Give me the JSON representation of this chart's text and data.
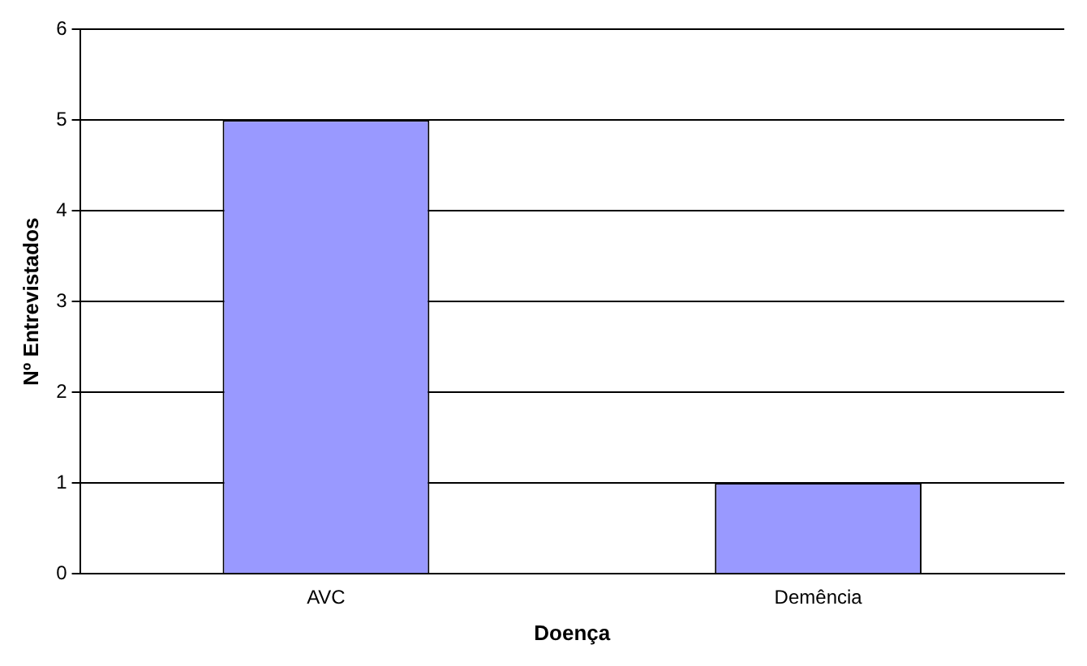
{
  "chart_data": {
    "type": "bar",
    "xlabel": "Doença",
    "ylabel": "Nº Entrevistados",
    "categories": [
      "AVC",
      "Demência"
    ],
    "values": [
      5,
      1
    ],
    "color": "#9999ff",
    "ylim": [
      0,
      6
    ],
    "yticks": [
      0,
      1,
      2,
      3,
      4,
      5,
      6
    ],
    "grid": "y",
    "legend": false
  }
}
